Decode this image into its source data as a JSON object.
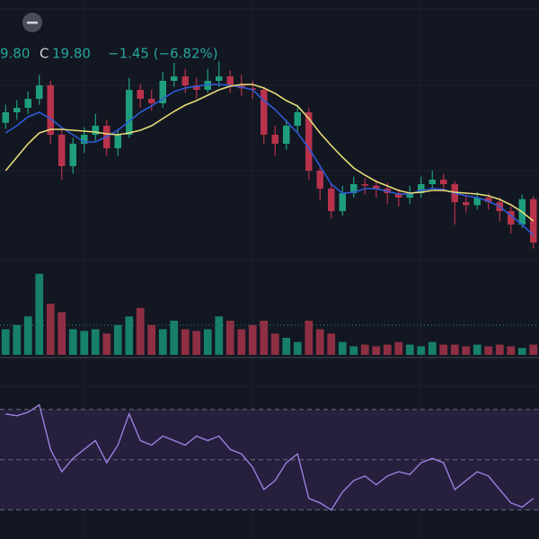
{
  "header": {
    "low_partial": "9.80",
    "close_label": "C",
    "close": "19.80",
    "change": "−1.45 (−6.82%)"
  },
  "chart_data": [
    {
      "type": "candlestick",
      "up_color": "#1f9e7e",
      "down_color": "#b8324b",
      "ylim": [
        18.9,
        27.9
      ],
      "open": [
        23.8,
        24.15,
        24.3,
        24.6,
        25.05,
        23.4,
        22.35,
        23.1,
        23.4,
        23.7,
        22.95,
        23.4,
        24.9,
        24.6,
        24.45,
        25.2,
        25.35,
        25.05,
        24.9,
        25.2,
        25.35,
        25.05,
        24.95,
        24.9,
        23.4,
        23.1,
        23.7,
        24.15,
        22.2,
        21.6,
        20.85,
        21.45,
        21.75,
        21.7,
        21.6,
        21.45,
        21.3,
        21.45,
        21.75,
        21.9,
        21.75,
        21.15,
        21.05,
        21.3,
        21.15,
        20.85,
        20.4,
        21.25
      ],
      "high": [
        24.4,
        24.55,
        24.85,
        25.4,
        25.2,
        23.6,
        23.3,
        23.65,
        24.1,
        23.9,
        23.6,
        25.3,
        25.1,
        24.9,
        25.5,
        25.8,
        25.6,
        25.3,
        25.6,
        25.85,
        25.55,
        25.4,
        25.2,
        25.0,
        23.7,
        23.9,
        24.4,
        24.3,
        22.4,
        21.8,
        21.7,
        22.0,
        21.95,
        21.9,
        21.8,
        21.6,
        21.7,
        22.0,
        22.2,
        22.1,
        21.85,
        21.4,
        21.5,
        21.45,
        21.3,
        21.0,
        21.4,
        21.35
      ],
      "low": [
        23.6,
        23.9,
        24.1,
        24.4,
        23.1,
        21.9,
        22.1,
        22.8,
        23.2,
        22.7,
        22.7,
        23.3,
        24.3,
        24.2,
        24.3,
        25.0,
        24.8,
        24.6,
        24.8,
        25.0,
        24.8,
        24.7,
        24.6,
        23.1,
        22.7,
        22.9,
        23.5,
        21.9,
        21.2,
        20.6,
        20.7,
        21.3,
        21.4,
        21.3,
        21.1,
        21.0,
        21.1,
        21.3,
        21.6,
        21.5,
        20.4,
        20.8,
        20.9,
        20.9,
        20.5,
        20.1,
        20.3,
        19.6
      ],
      "close": [
        24.15,
        24.3,
        24.6,
        25.05,
        23.4,
        22.35,
        23.1,
        23.4,
        23.7,
        22.95,
        23.4,
        24.9,
        24.6,
        24.45,
        25.2,
        25.35,
        25.05,
        24.9,
        25.2,
        25.35,
        25.05,
        24.95,
        24.9,
        23.4,
        23.1,
        23.7,
        24.15,
        22.2,
        21.6,
        20.85,
        21.45,
        21.75,
        21.7,
        21.6,
        21.45,
        21.3,
        21.45,
        21.75,
        21.9,
        21.75,
        21.15,
        21.05,
        21.3,
        21.15,
        20.85,
        20.4,
        21.25,
        19.8
      ],
      "lines": [
        {
          "color": "#2e5bd8",
          "values": [
            23.46,
            23.7,
            24.0,
            24.15,
            23.94,
            23.64,
            23.4,
            23.16,
            23.16,
            23.34,
            23.55,
            23.85,
            24.15,
            24.36,
            24.6,
            24.84,
            24.96,
            25.02,
            25.08,
            25.08,
            25.05,
            24.99,
            24.9,
            24.54,
            24.24,
            23.85,
            23.46,
            22.95,
            22.35,
            21.75,
            21.45,
            21.48,
            21.6,
            21.6,
            21.51,
            21.42,
            21.42,
            21.54,
            21.6,
            21.57,
            21.45,
            21.36,
            21.3,
            21.18,
            21.0,
            20.7,
            20.4,
            20.04
          ]
        },
        {
          "color": "#e6dc78",
          "values": [
            22.2,
            22.65,
            23.1,
            23.46,
            23.58,
            23.58,
            23.55,
            23.52,
            23.49,
            23.43,
            23.4,
            23.46,
            23.55,
            23.7,
            23.94,
            24.18,
            24.39,
            24.54,
            24.72,
            24.9,
            25.02,
            25.08,
            25.08,
            24.96,
            24.78,
            24.54,
            24.36,
            23.94,
            23.46,
            23.04,
            22.65,
            22.29,
            22.05,
            21.84,
            21.69,
            21.54,
            21.45,
            21.48,
            21.54,
            21.54,
            21.48,
            21.45,
            21.42,
            21.36,
            21.24,
            21.06,
            20.82,
            20.52
          ]
        }
      ]
    },
    {
      "type": "bar",
      "up_color": "#17806a",
      "down_color": "#8e2f44",
      "ylim": [
        0,
        100
      ],
      "values": [
        30,
        35,
        45,
        95,
        60,
        50,
        30,
        28,
        30,
        25,
        35,
        45,
        55,
        35,
        30,
        40,
        30,
        28,
        30,
        45,
        40,
        30,
        35,
        40,
        25,
        20,
        15,
        40,
        30,
        25,
        15,
        10,
        12,
        10,
        12,
        15,
        12,
        10,
        15,
        12,
        12,
        10,
        12,
        10,
        12,
        10,
        8,
        12
      ]
    },
    {
      "type": "line",
      "color": "#9b80e0",
      "band_color": "#261f3d",
      "ylim": [
        22,
        81
      ],
      "levels": [
        30,
        50,
        70
      ],
      "values": [
        68.2,
        67.5,
        68.9,
        71.8,
        54.1,
        45.2,
        50.5,
        54.1,
        57.6,
        48.8,
        55.8,
        68.2,
        57.6,
        55.8,
        59.4,
        57.6,
        55.8,
        59.4,
        57.6,
        59.4,
        54.1,
        52.3,
        47.0,
        38.1,
        41.7,
        48.8,
        52.3,
        34.6,
        32.8,
        30.0,
        37.1,
        41.7,
        43.5,
        40.0,
        43.5,
        45.2,
        44.1,
        48.8,
        50.5,
        48.8,
        38.1,
        41.7,
        45.2,
        43.5,
        38.1,
        32.8,
        31.1,
        34.6
      ]
    }
  ]
}
